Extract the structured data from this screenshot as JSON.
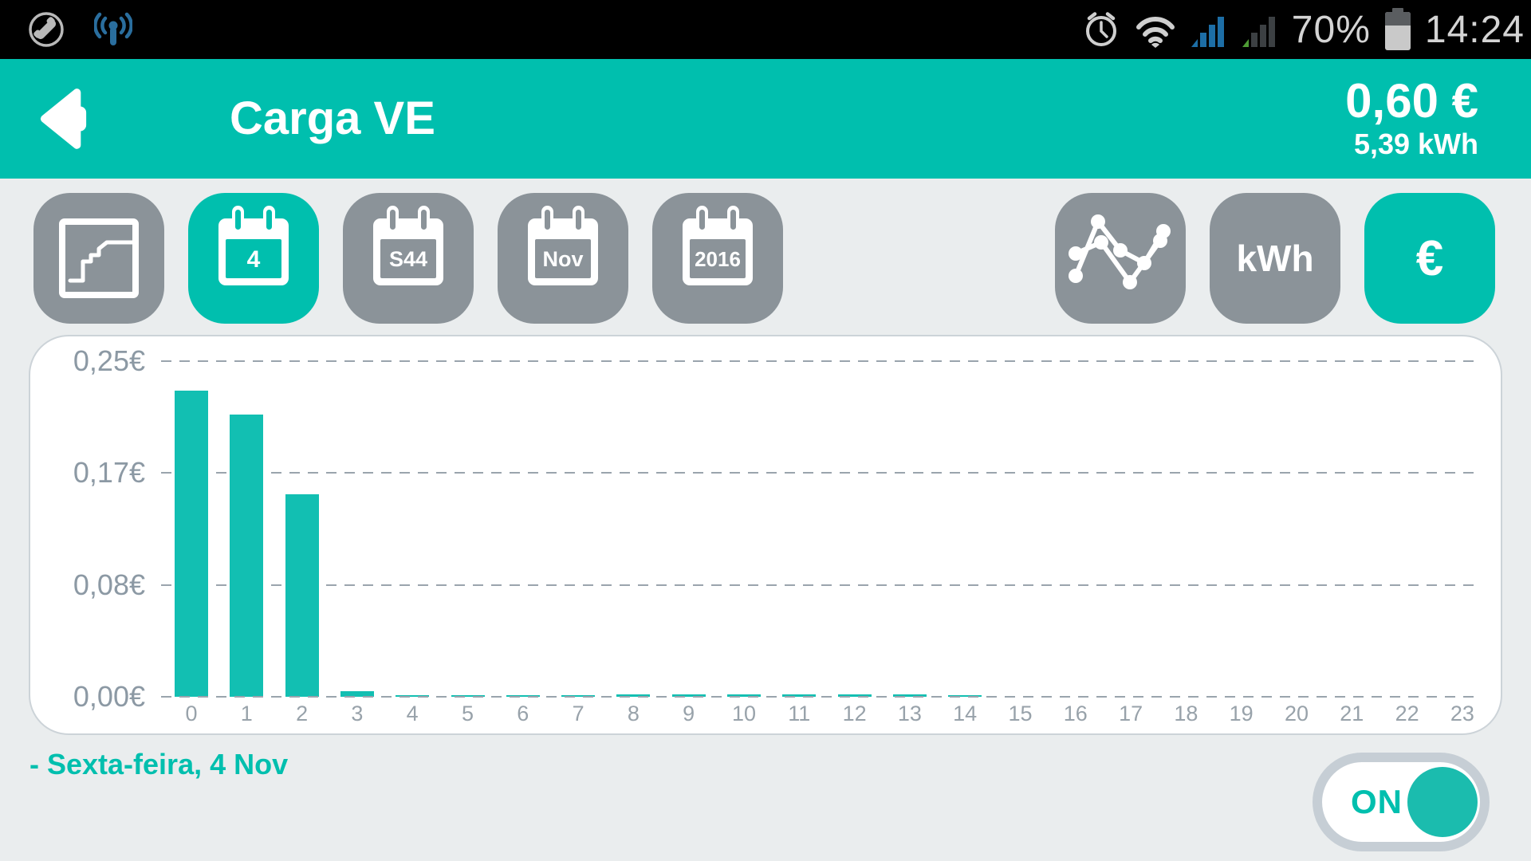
{
  "status_bar": {
    "left_icons": [
      "phone-icon",
      "hotspot-icon"
    ],
    "right_icons": [
      "alarm-icon",
      "wifi-icon",
      "cell-signal-icon",
      "cell-signal-2-icon",
      "battery-icon"
    ],
    "battery_percent": "70%",
    "time": "14:24"
  },
  "header": {
    "back_icon": "back-arrow-icon",
    "title": "Carga VE",
    "total_cost": "0,60 €",
    "total_energy": "5,39 kWh"
  },
  "toolbar": {
    "left_buttons": [
      {
        "name": "step-chart",
        "icon": "step-chart-icon",
        "label": "",
        "active": false
      },
      {
        "name": "day",
        "icon": "calendar-icon",
        "label": "4",
        "active": true
      },
      {
        "name": "week",
        "icon": "calendar-icon",
        "label": "S44",
        "active": false
      },
      {
        "name": "month",
        "icon": "calendar-icon",
        "label": "Nov",
        "active": false
      },
      {
        "name": "year",
        "icon": "calendar-icon",
        "label": "2016",
        "active": false
      }
    ],
    "right_buttons": [
      {
        "name": "line-chart",
        "icon": "line-chart-icon",
        "label": "",
        "active": false
      },
      {
        "name": "unit-kwh",
        "label": "kWh",
        "active": false
      },
      {
        "name": "unit-euro",
        "label": "€",
        "active": true
      }
    ]
  },
  "chart_data": {
    "type": "bar",
    "title": "",
    "x": [
      0,
      1,
      2,
      3,
      4,
      5,
      6,
      7,
      8,
      9,
      10,
      11,
      12,
      13,
      14,
      15,
      16,
      17,
      18,
      19,
      20,
      21,
      22,
      23
    ],
    "values": [
      0.228,
      0.21,
      0.151,
      0.004,
      0.001,
      0.001,
      0.001,
      0.001,
      0.002,
      0.002,
      0.002,
      0.002,
      0.002,
      0.002,
      0.001,
      0,
      0,
      0,
      0,
      0,
      0,
      0,
      0,
      0
    ],
    "unit": "€",
    "xlabel": "",
    "ylabel": "",
    "ylim": [
      0,
      0.25
    ],
    "yticks": [
      {
        "value": 0.25,
        "label": "0,25€"
      },
      {
        "value": 0.167,
        "label": "0,17€"
      },
      {
        "value": 0.083,
        "label": "0,08€"
      },
      {
        "value": 0,
        "label": "0,00€"
      }
    ],
    "grid": "dashed horizontal",
    "legend": "none",
    "bar_color": "#12bfb2"
  },
  "footer": {
    "date_label": "- Sexta-feira, 4 Nov",
    "toggle_state": "ON"
  },
  "colors": {
    "accent_teal": "#00bfae",
    "bar_teal": "#12bfb2",
    "button_gray": "#8b9399",
    "background": "#eaedee",
    "statusbar_black": "#000000",
    "axis_label_gray": "#8c99a4",
    "signal_blue": "#1d6ea6",
    "signal_green": "#4e9c35",
    "toggle_border_gray": "#c6ced5"
  }
}
